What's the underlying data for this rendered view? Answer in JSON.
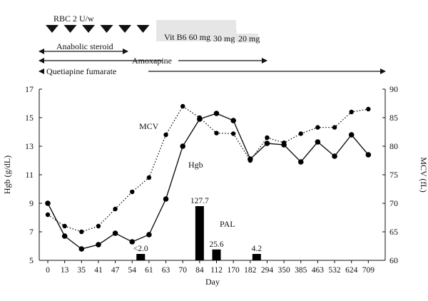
{
  "chart_data": {
    "type": "line",
    "categories": [
      "0",
      "13",
      "35",
      "41",
      "47",
      "54",
      "61",
      "63",
      "70",
      "84",
      "112",
      "170",
      "182",
      "294",
      "350",
      "385",
      "463",
      "532",
      "624",
      "709"
    ],
    "xlabel": "Day",
    "ylabel_left": "Hgb (g/dL)",
    "ylabel_right": "MCV (fL)",
    "ylim_left": [
      5,
      17
    ],
    "yticks_left": [
      "5",
      "7",
      "9",
      "11",
      "13",
      "15",
      "17"
    ],
    "ylim_right": [
      60,
      90
    ],
    "yticks_right": [
      "60",
      "65",
      "70",
      "75",
      "80",
      "85",
      "90"
    ],
    "series": [
      {
        "name": "Hgb",
        "axis": "left",
        "style": "solid",
        "values": [
          9.0,
          6.7,
          5.8,
          6.1,
          6.9,
          6.3,
          6.8,
          9.3,
          13.0,
          14.9,
          15.3,
          14.8,
          12.1,
          13.2,
          13.1,
          11.9,
          13.3,
          12.3,
          13.8,
          12.4
        ]
      },
      {
        "name": "MCV",
        "axis": "right",
        "style": "dotted",
        "values": [
          68,
          66,
          65,
          66,
          69,
          72,
          74.5,
          82,
          87,
          85,
          82.3,
          82.2,
          77.5,
          81.5,
          80.6,
          82.2,
          83.3,
          83.3,
          86,
          86.5
        ]
      }
    ],
    "pal": {
      "name": "PAL",
      "bars": [
        {
          "category": "54",
          "label": "<2.0",
          "value": 2.0
        },
        {
          "category": "84",
          "label": "127.7",
          "value": 127.7
        },
        {
          "category": "112",
          "label": "25.6",
          "value": 25.6
        },
        {
          "category": "182",
          "label": "4.2",
          "value": 4.2
        }
      ]
    },
    "treatments": {
      "rbc_label": "RBC 2 U/w",
      "rbc_markers": 6,
      "vitb6": [
        {
          "label": "Vit B6 60 mg"
        },
        {
          "label": "30 mg"
        },
        {
          "label": "20 mg"
        }
      ],
      "arrows": [
        {
          "label": "Anabolic steroid"
        },
        {
          "label": "Amoxapine"
        },
        {
          "label": "Quetiapine fumarate"
        }
      ]
    }
  }
}
